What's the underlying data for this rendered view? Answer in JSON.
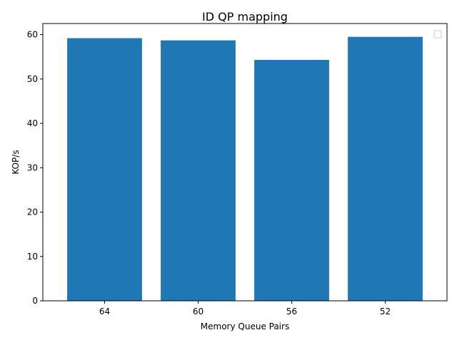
{
  "chart_data": {
    "type": "bar",
    "title": "ID QP mapping",
    "xlabel": "Memory Queue Pairs",
    "ylabel": "KOP/s",
    "categories": [
      "64",
      "60",
      "56",
      "52"
    ],
    "values": [
      59.2,
      58.7,
      54.3,
      59.5
    ],
    "ylim": [
      0,
      62.5
    ],
    "yticks": [
      0,
      10,
      20,
      30,
      40,
      50,
      60
    ],
    "bar_color": "#1f77b4",
    "grid": false,
    "legend": {
      "placement": "top-right",
      "entries": []
    }
  }
}
